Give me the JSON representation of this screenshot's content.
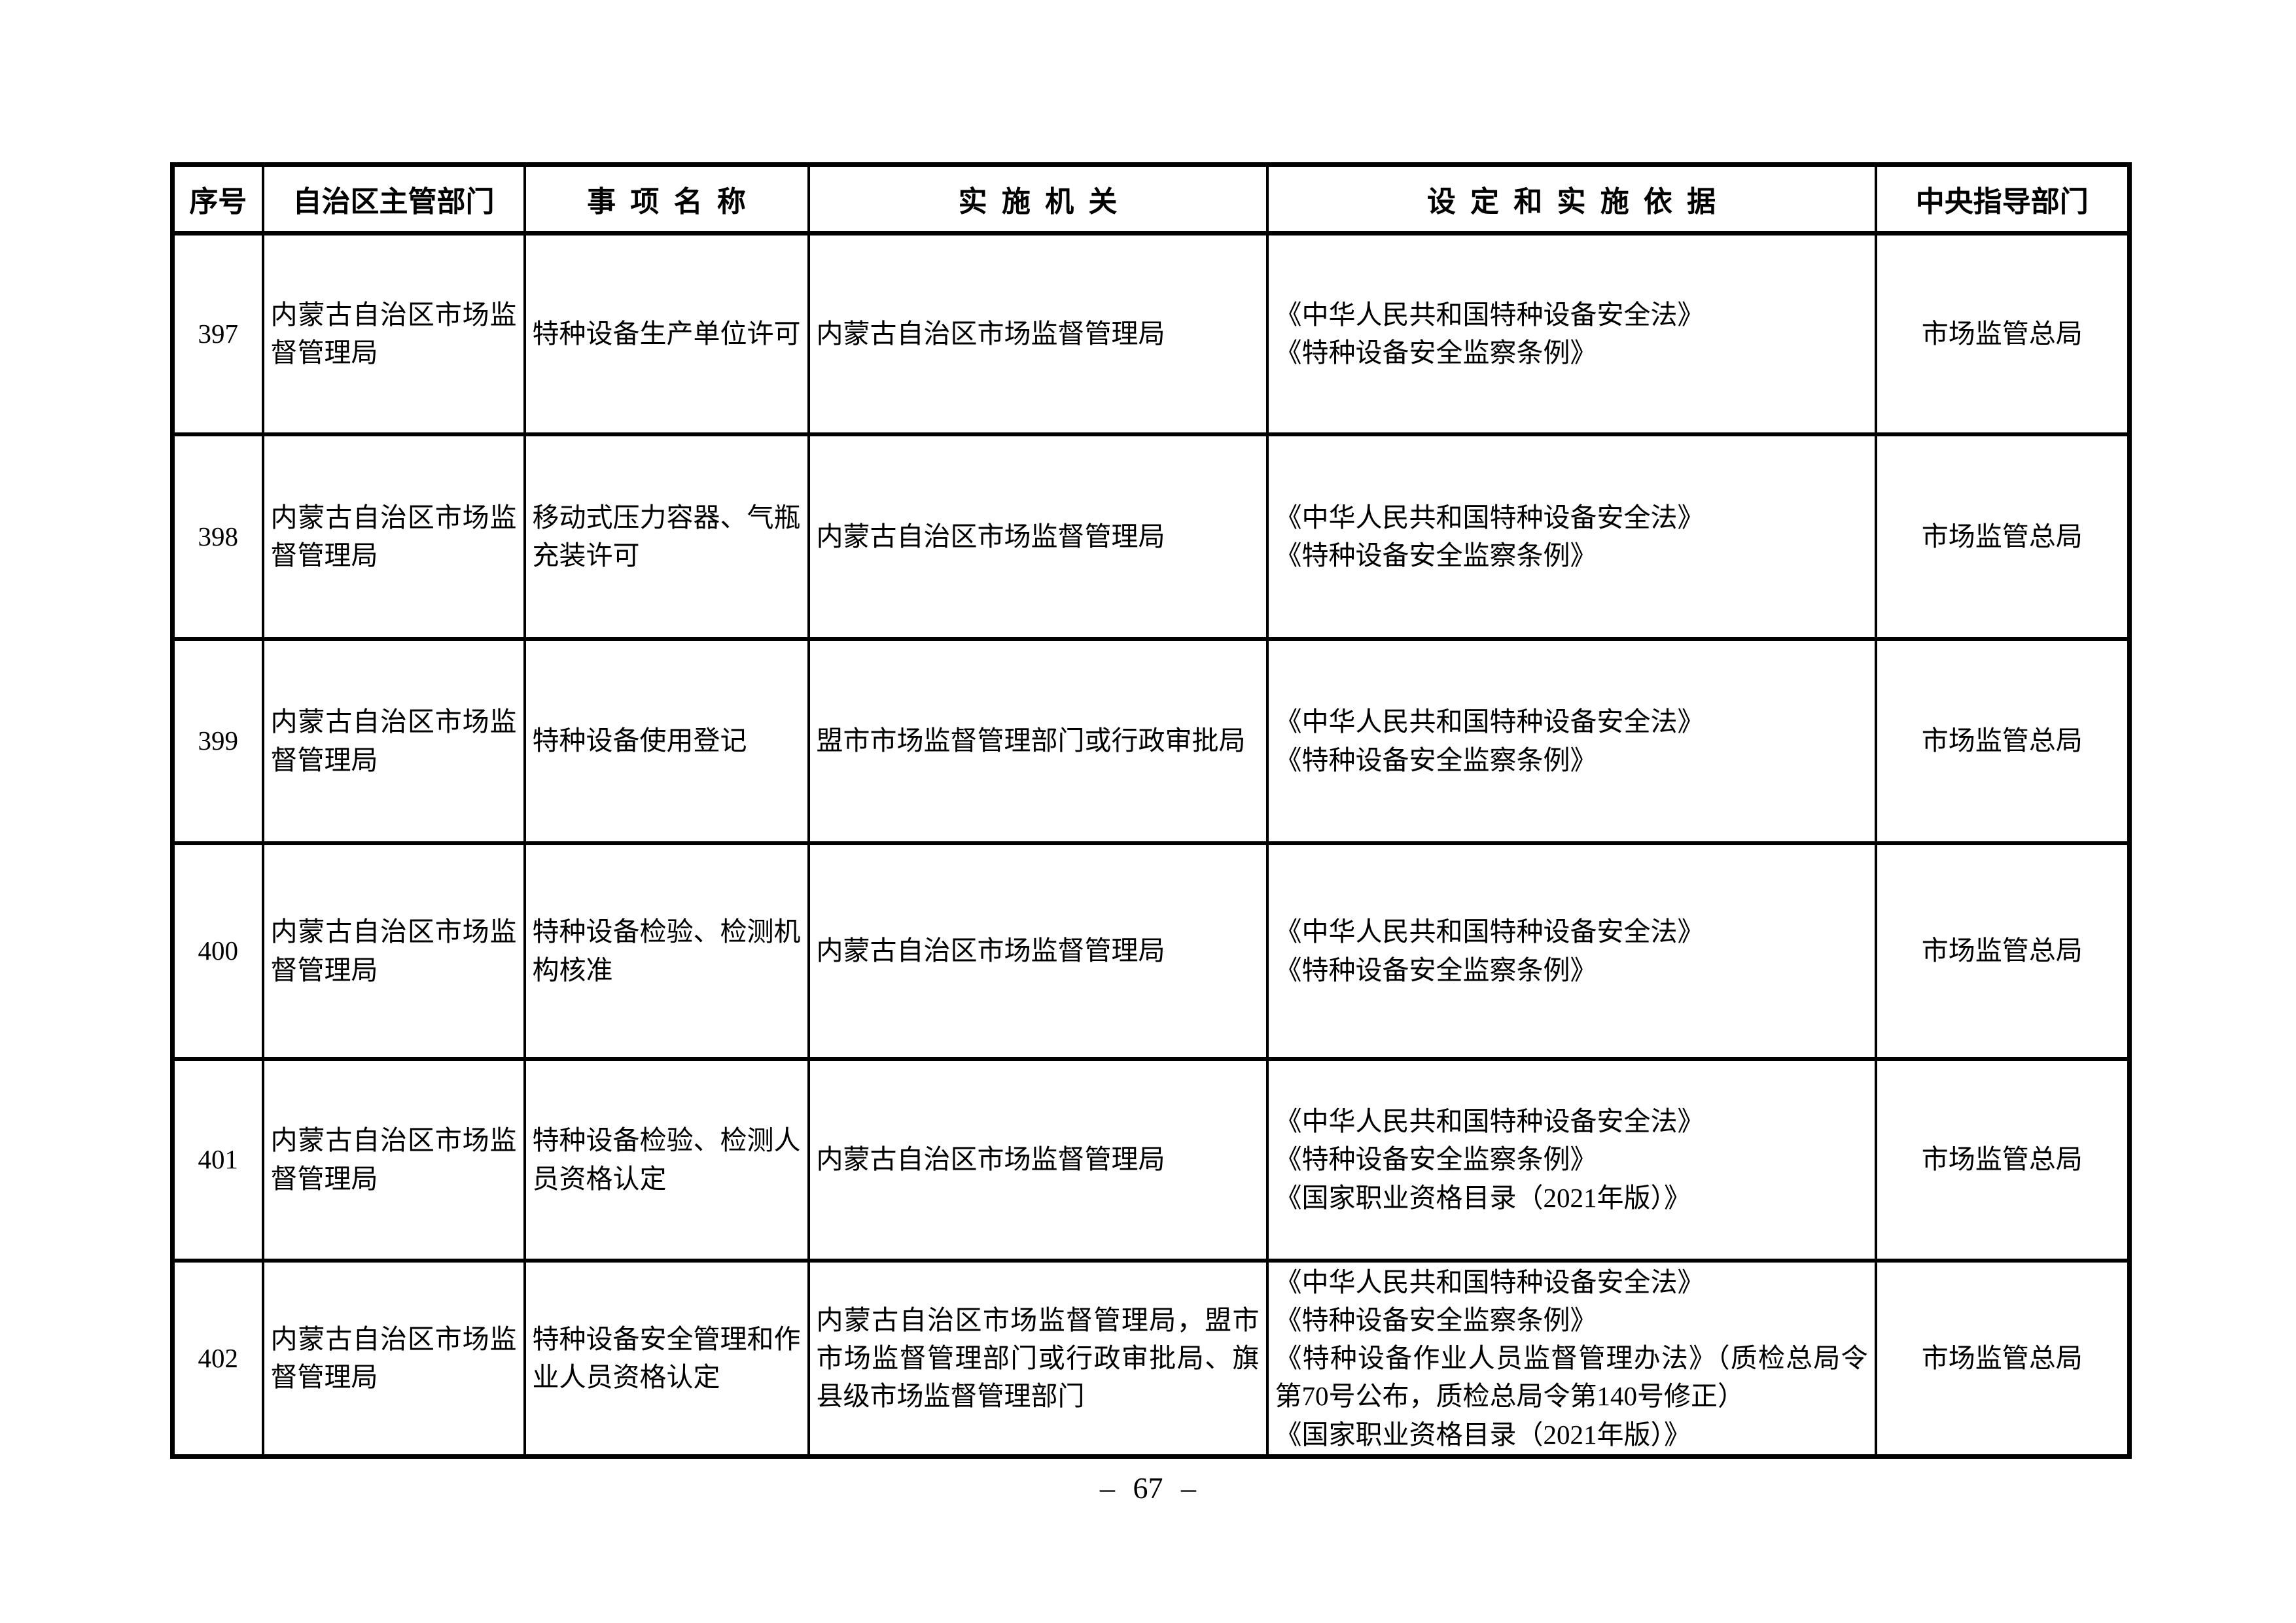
{
  "page": {
    "page_number": "– 67 –"
  },
  "table": {
    "headers": [
      "序号",
      "自治区主管部门",
      "事 项 名 称",
      "实 施 机 关",
      "设 定 和 实 施 依 据",
      "中央指导部门"
    ],
    "rows": [
      {
        "no": "397",
        "department": "内蒙古自治区市场监督管理局",
        "item": "特种设备生产单位许可",
        "agency": "内蒙古自治区市场监督管理局",
        "basis": [
          "《中华人民共和国特种设备安全法》",
          "《特种设备安全监察条例》"
        ],
        "central": "市场监管总局"
      },
      {
        "no": "398",
        "department": "内蒙古自治区市场监督管理局",
        "item": "移动式压力容器、气瓶充装许可",
        "agency": "内蒙古自治区市场监督管理局",
        "basis": [
          "《中华人民共和国特种设备安全法》",
          "《特种设备安全监察条例》"
        ],
        "central": "市场监管总局"
      },
      {
        "no": "399",
        "department": "内蒙古自治区市场监督管理局",
        "item": "特种设备使用登记",
        "agency": "盟市市场监督管理部门或行政审批局",
        "basis": [
          "《中华人民共和国特种设备安全法》",
          "《特种设备安全监察条例》"
        ],
        "central": "市场监管总局"
      },
      {
        "no": "400",
        "department": "内蒙古自治区市场监督管理局",
        "item": "特种设备检验、检测机构核准",
        "agency": "内蒙古自治区市场监督管理局",
        "basis": [
          "《中华人民共和国特种设备安全法》",
          "《特种设备安全监察条例》"
        ],
        "central": "市场监管总局"
      },
      {
        "no": "401",
        "department": "内蒙古自治区市场监督管理局",
        "item": "特种设备检验、检测人员资格认定",
        "agency": "内蒙古自治区市场监督管理局",
        "basis": [
          "《中华人民共和国特种设备安全法》",
          "《特种设备安全监察条例》",
          "《国家职业资格目录（2021年版）》"
        ],
        "central": "市场监管总局"
      },
      {
        "no": "402",
        "department": "内蒙古自治区市场监督管理局",
        "item": "特种设备安全管理和作业人员资格认定",
        "agency": "内蒙古自治区市场监督管理局，盟市市场监督管理部门或行政审批局、旗县级市场监督管理部门",
        "basis": [
          "《中华人民共和国特种设备安全法》",
          "《特种设备安全监察条例》",
          "《特种设备作业人员监督管理办法》（质检总局令第70号公布，质检总局令第140号修正）",
          "《国家职业资格目录（2021年版）》"
        ],
        "central": "市场监管总局"
      }
    ]
  }
}
